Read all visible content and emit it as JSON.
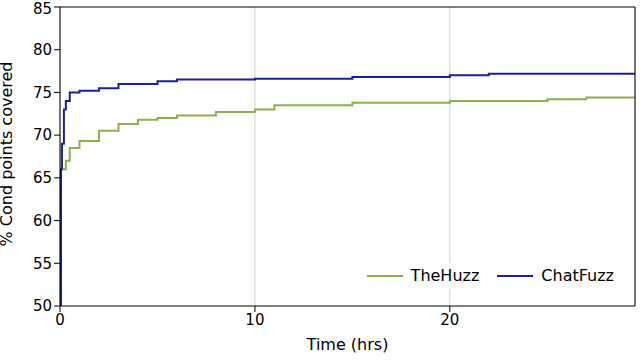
{
  "chart_data": {
    "type": "line",
    "x_label": "Time (hrs)",
    "y_label": "% Cond points covered",
    "xlim": [
      0,
      29.5
    ],
    "ylim": [
      50,
      85
    ],
    "xticks": [
      0,
      10,
      20
    ],
    "yticks": [
      50,
      55,
      60,
      65,
      70,
      75,
      80,
      85
    ],
    "grid": true,
    "legend": "lower right",
    "series": [
      {
        "name": "TheHuzz",
        "color": "#8db04a",
        "x": [
          0,
          0.05,
          0.3,
          0.5,
          1,
          2,
          3,
          4,
          5,
          6,
          8,
          10,
          11,
          15,
          20,
          25,
          27,
          29.5
        ],
        "values": [
          50,
          66,
          67,
          68.5,
          69.3,
          70.5,
          71.3,
          71.8,
          72,
          72.3,
          72.7,
          73,
          73.5,
          73.8,
          74,
          74.2,
          74.4,
          74.5
        ]
      },
      {
        "name": "ChatFuzz",
        "color": "#1f1f9e",
        "x": [
          0,
          0.05,
          0.1,
          0.2,
          0.3,
          0.5,
          1,
          2,
          3,
          5,
          6,
          10,
          15,
          20,
          22,
          29.5
        ],
        "values": [
          50,
          66,
          69,
          73,
          74,
          75,
          75.2,
          75.5,
          76,
          76.3,
          76.5,
          76.6,
          76.8,
          77,
          77.2,
          77.2
        ]
      }
    ]
  }
}
